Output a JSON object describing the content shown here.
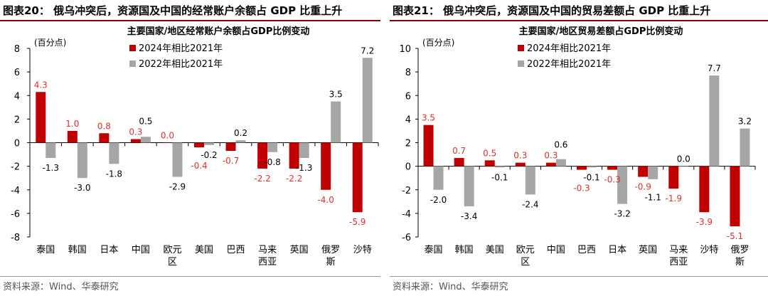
{
  "panels": [
    {
      "title": "图表20：  俄乌冲突后，资源国及中国的经常账户余额占 GDP 比重上升",
      "source": "资料来源：Wind、华泰研究"
    },
    {
      "title": "图表21：  俄乌冲突后，资源国及中国的贸易差额占 GDP 比重上升",
      "source": "资料来源：Wind、华泰研究"
    }
  ],
  "chart_data": [
    {
      "type": "bar",
      "title": "主要国家/地区经常账户余额占GDP比例变动",
      "ylabel": "(百分点)",
      "ylim": [
        -8,
        8
      ],
      "yticks": [
        -8,
        -6,
        -4,
        -2,
        0,
        2,
        4,
        6,
        8
      ],
      "categories": [
        "泰国",
        "韩国",
        "日本",
        "中国",
        "欧元区",
        "美国",
        "巴西",
        "马来西亚",
        "英国",
        "俄罗斯",
        "沙特"
      ],
      "series": [
        {
          "name": "2024年相比2021年",
          "color": "#c00000",
          "values": [
            4.3,
            1.0,
            0.8,
            0.3,
            0.0,
            -0.4,
            -0.7,
            -2.2,
            -2.2,
            -4.0,
            -5.9
          ]
        },
        {
          "name": "2022年相比2021年",
          "color": "#a6a6a6",
          "values": [
            -1.3,
            -3.0,
            -1.8,
            0.5,
            -2.9,
            -0.2,
            0.2,
            -0.8,
            -1.3,
            3.5,
            7.2
          ]
        }
      ],
      "legend": "top-left",
      "grid": false
    },
    {
      "type": "bar",
      "title": "主要国家/地区贸易差额占GDP比例变动",
      "ylabel": "(百分点)",
      "ylim": [
        -6,
        10
      ],
      "yticks": [
        -6,
        -4,
        -2,
        0,
        2,
        4,
        6,
        8,
        10
      ],
      "categories": [
        "泰国",
        "韩国",
        "美国",
        "欧元区",
        "中国",
        "巴西",
        "日本",
        "英国",
        "马来西亚",
        "沙特",
        "俄罗斯"
      ],
      "series": [
        {
          "name": "2024年相比2021年",
          "color": "#c00000",
          "values": [
            3.5,
            0.7,
            0.5,
            0.3,
            0.3,
            -0.3,
            -0.3,
            -0.9,
            -1.9,
            -3.9,
            -5.1
          ]
        },
        {
          "name": "2022年相比2021年",
          "color": "#a6a6a6",
          "values": [
            -2.0,
            -3.4,
            -0.1,
            -2.4,
            0.6,
            -0.1,
            -3.2,
            -1.1,
            0.0,
            7.7,
            3.2
          ]
        }
      ],
      "legend": "top-left",
      "grid": false
    }
  ]
}
